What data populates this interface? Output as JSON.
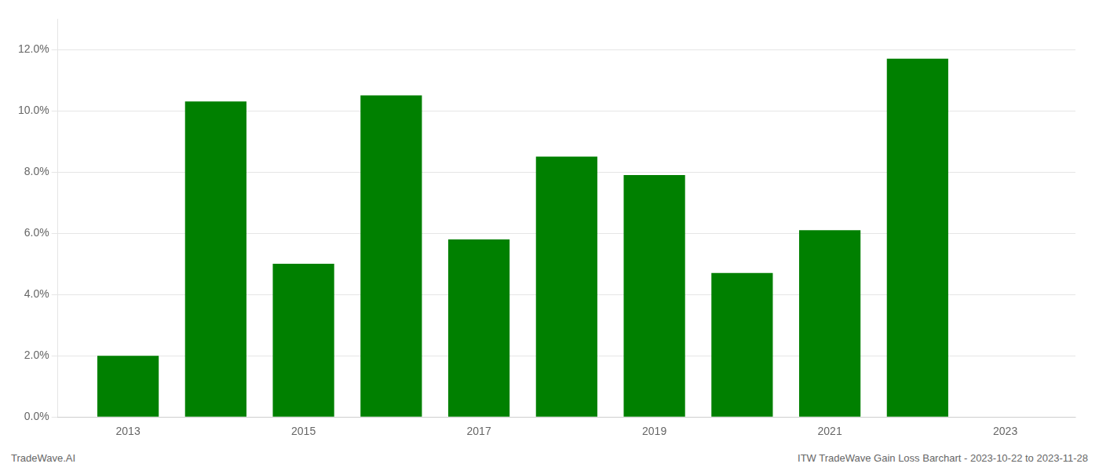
{
  "chart_data": {
    "type": "bar",
    "x": [
      2013,
      2014,
      2015,
      2016,
      2017,
      2018,
      2019,
      2020,
      2021,
      2022
    ],
    "values": [
      0.02,
      0.103,
      0.05,
      0.105,
      0.058,
      0.085,
      0.079,
      0.047,
      0.061,
      0.117
    ],
    "color": "#008000",
    "xlim": [
      2012.2,
      2023.8
    ],
    "xticks": [
      2013,
      2015,
      2017,
      2019,
      2021,
      2023
    ],
    "ylim": [
      0,
      0.13
    ],
    "yticks": [
      {
        "value": 0.0,
        "label": "0.0%"
      },
      {
        "value": 0.02,
        "label": "2.0%"
      },
      {
        "value": 0.04,
        "label": "4.0%"
      },
      {
        "value": 0.06,
        "label": "6.0%"
      },
      {
        "value": 0.08,
        "label": "8.0%"
      },
      {
        "value": 0.1,
        "label": "10.0%"
      },
      {
        "value": 0.12,
        "label": "12.0%"
      }
    ],
    "grid": "y",
    "annotations": [
      "TradeWave.AI",
      "ITW TradeWave Gain Loss Barchart - 2023-10-22 to 2023-11-28"
    ]
  }
}
